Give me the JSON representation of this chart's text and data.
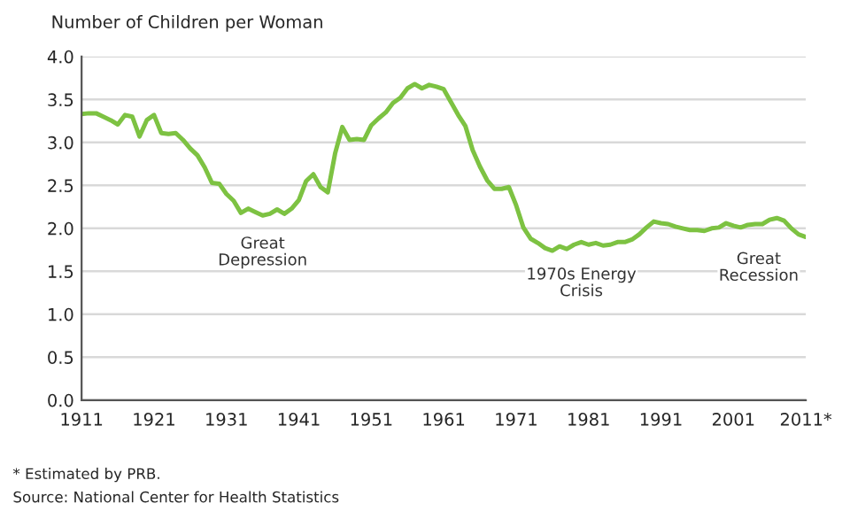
{
  "chart_data": {
    "type": "line",
    "ylabel": "Number of Children per Woman",
    "x": [
      1911,
      1912,
      1913,
      1914,
      1915,
      1916,
      1917,
      1918,
      1919,
      1920,
      1921,
      1922,
      1923,
      1924,
      1925,
      1926,
      1927,
      1928,
      1929,
      1930,
      1931,
      1932,
      1933,
      1934,
      1935,
      1936,
      1937,
      1938,
      1939,
      1940,
      1941,
      1942,
      1943,
      1944,
      1945,
      1946,
      1947,
      1948,
      1949,
      1950,
      1951,
      1952,
      1953,
      1954,
      1955,
      1956,
      1957,
      1958,
      1959,
      1960,
      1961,
      1962,
      1963,
      1964,
      1965,
      1966,
      1967,
      1968,
      1969,
      1970,
      1971,
      1972,
      1973,
      1974,
      1975,
      1976,
      1977,
      1978,
      1979,
      1980,
      1981,
      1982,
      1983,
      1984,
      1985,
      1986,
      1987,
      1988,
      1989,
      1990,
      1991,
      1992,
      1993,
      1994,
      1995,
      1996,
      1997,
      1998,
      1999,
      2000,
      2001,
      2002,
      2003,
      2004,
      2005,
      2006,
      2007,
      2008,
      2009,
      2010,
      2011
    ],
    "series": [
      {
        "color": "#7dc242",
        "values": [
          3.33,
          3.34,
          3.34,
          3.3,
          3.26,
          3.21,
          3.32,
          3.3,
          3.07,
          3.26,
          3.32,
          3.11,
          3.1,
          3.11,
          3.03,
          2.93,
          2.85,
          2.71,
          2.53,
          2.52,
          2.4,
          2.32,
          2.18,
          2.23,
          2.19,
          2.15,
          2.17,
          2.22,
          2.17,
          2.23,
          2.33,
          2.55,
          2.63,
          2.48,
          2.42,
          2.87,
          3.18,
          3.03,
          3.04,
          3.03,
          3.2,
          3.28,
          3.35,
          3.46,
          3.52,
          3.63,
          3.68,
          3.63,
          3.67,
          3.65,
          3.62,
          3.47,
          3.32,
          3.19,
          2.91,
          2.72,
          2.56,
          2.46,
          2.46,
          2.48,
          2.27,
          2.01,
          1.88,
          1.83,
          1.77,
          1.74,
          1.79,
          1.76,
          1.81,
          1.84,
          1.81,
          1.83,
          1.8,
          1.81,
          1.84,
          1.84,
          1.87,
          1.93,
          2.01,
          2.08,
          2.06,
          2.05,
          2.02,
          2.0,
          1.98,
          1.98,
          1.97,
          2.0,
          2.01,
          2.06,
          2.03,
          2.01,
          2.04,
          2.05,
          2.05,
          2.1,
          2.12,
          2.09,
          2.0,
          1.93,
          1.9
        ]
      }
    ],
    "xlim": [
      1911,
      2011
    ],
    "xticks": [
      1911,
      1921,
      1931,
      1941,
      1951,
      1961,
      1971,
      1981,
      1991,
      2001,
      {
        "value": 2011,
        "label": "2011*"
      }
    ],
    "ylim": [
      0,
      4
    ],
    "yticks": [
      {
        "value": 0,
        "label": "0.0"
      },
      {
        "value": 0.5,
        "label": "0.5"
      },
      {
        "value": 1,
        "label": "1.0"
      },
      {
        "value": 1.5,
        "label": "1.5"
      },
      {
        "value": 2,
        "label": "2.0"
      },
      {
        "value": 2.5,
        "label": "2.5"
      },
      {
        "value": 3,
        "label": "3.0"
      },
      {
        "value": 3.5,
        "label": "3.5"
      },
      {
        "value": 4,
        "label": "4.0"
      }
    ],
    "grid": "y",
    "marker": "none",
    "line_style": "solid",
    "annotations": [
      "Great\nDepression",
      "1970s Energy\nCrisis",
      "Great\nRecession",
      "* Estimated by PRB.",
      "Source: National Center for Health Statistics"
    ]
  }
}
